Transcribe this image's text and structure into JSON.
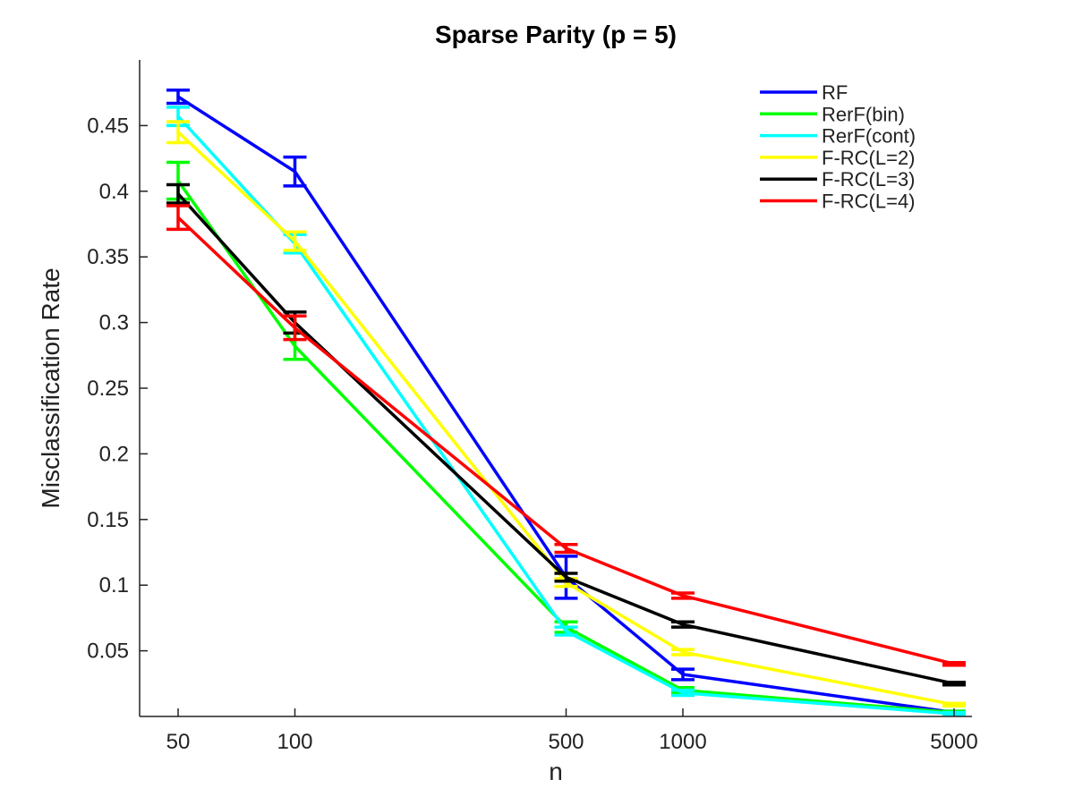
{
  "chart_data": {
    "type": "line",
    "title": "Sparse Parity (p = 5)",
    "xlabel": "n",
    "ylabel": "Misclassification Rate",
    "x": [
      50,
      100,
      500,
      1000,
      5000
    ],
    "x_scale": "log",
    "x_tick_labels": [
      "50",
      "100",
      "500",
      "1000",
      "5000"
    ],
    "ylim": [
      0,
      0.5
    ],
    "y_ticks": [
      0.05,
      0.1,
      0.15,
      0.2,
      0.25,
      0.3,
      0.35,
      0.4,
      0.45
    ],
    "y_tick_labels": [
      "0.05",
      "0.1",
      "0.15",
      "0.2",
      "0.25",
      "0.3",
      "0.35",
      "0.4",
      "0.45"
    ],
    "grid": false,
    "legend_position": "top-right",
    "series": [
      {
        "name": "RF",
        "color": "#0000ff",
        "values": [
          0.472,
          0.415,
          0.106,
          0.032,
          0.003
        ],
        "error": [
          0.005,
          0.011,
          0.016,
          0.004,
          0.001
        ]
      },
      {
        "name": "RerF(bin)",
        "color": "#00ff00",
        "values": [
          0.408,
          0.282,
          0.068,
          0.02,
          0.003
        ],
        "error": [
          0.014,
          0.01,
          0.004,
          0.002,
          0.001
        ]
      },
      {
        "name": "RerF(cont)",
        "color": "#00ffff",
        "values": [
          0.457,
          0.36,
          0.065,
          0.018,
          0.002
        ],
        "error": [
          0.007,
          0.007,
          0.003,
          0.002,
          0.001
        ]
      },
      {
        "name": "F-RC(L=2)",
        "color": "#ffff00",
        "values": [
          0.445,
          0.362,
          0.102,
          0.049,
          0.009
        ],
        "error": [
          0.008,
          0.007,
          0.003,
          0.002,
          0.001
        ]
      },
      {
        "name": "F-RC(L=3)",
        "color": "#000000",
        "values": [
          0.398,
          0.3,
          0.106,
          0.07,
          0.025
        ],
        "error": [
          0.007,
          0.008,
          0.003,
          0.002,
          0.001
        ]
      },
      {
        "name": "F-RC(L=4)",
        "color": "#ff0000",
        "values": [
          0.38,
          0.296,
          0.128,
          0.092,
          0.04
        ],
        "error": [
          0.009,
          0.009,
          0.003,
          0.002,
          0.001
        ]
      }
    ]
  }
}
